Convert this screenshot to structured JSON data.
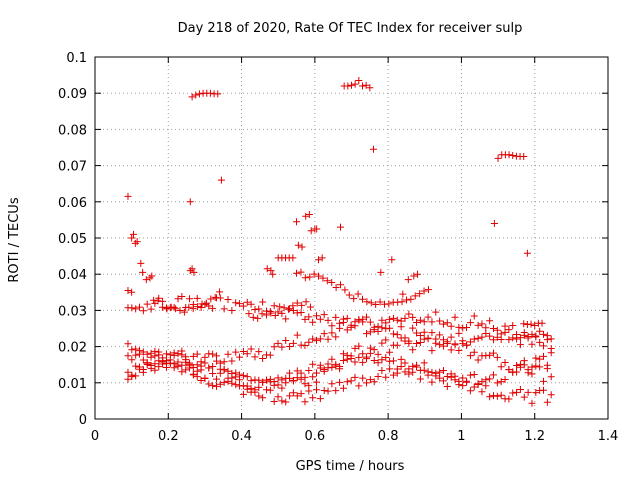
{
  "chart_data": {
    "type": "scatter",
    "title": "Day 218 of 2020, Rate Of TEC Index for receiver sulp",
    "xlabel": "GPS time / hours",
    "ylabel": "ROTI / TECUs",
    "xlim": [
      0,
      1.4
    ],
    "ylim": [
      0,
      0.1
    ],
    "xticks": [
      "0",
      "0.2",
      "0.4",
      "0.6",
      "0.8",
      "1",
      "1.2",
      "1.4"
    ],
    "yticks": [
      "0",
      "0.01",
      "0.02",
      "0.03",
      "0.04",
      "0.05",
      "0.06",
      "0.07",
      "0.08",
      "0.09",
      "0.1"
    ],
    "grid": true,
    "marker": "+",
    "color": "#e00000",
    "points": [
      [
        0.09,
        0.0615
      ],
      [
        0.09,
        0.0355
      ],
      [
        0.1,
        0.035
      ],
      [
        0.1,
        0.05
      ],
      [
        0.105,
        0.051
      ],
      [
        0.11,
        0.0485
      ],
      [
        0.115,
        0.049
      ],
      [
        0.125,
        0.043
      ],
      [
        0.13,
        0.0405
      ],
      [
        0.14,
        0.0385
      ],
      [
        0.15,
        0.039
      ],
      [
        0.155,
        0.0395
      ],
      [
        0.26,
        0.06
      ],
      [
        0.345,
        0.066
      ],
      [
        0.265,
        0.089
      ],
      [
        0.275,
        0.0895
      ],
      [
        0.285,
        0.0898
      ],
      [
        0.295,
        0.09
      ],
      [
        0.305,
        0.09
      ],
      [
        0.315,
        0.09
      ],
      [
        0.325,
        0.0898
      ],
      [
        0.335,
        0.0898
      ],
      [
        0.68,
        0.092
      ],
      [
        0.69,
        0.092
      ],
      [
        0.7,
        0.0922
      ],
      [
        0.71,
        0.0925
      ],
      [
        0.72,
        0.0935
      ],
      [
        0.73,
        0.092
      ],
      [
        0.74,
        0.0922
      ],
      [
        0.75,
        0.0915
      ],
      [
        0.76,
        0.0745
      ],
      [
        1.09,
        0.054
      ],
      [
        1.1,
        0.072
      ],
      [
        1.11,
        0.073
      ],
      [
        1.12,
        0.073
      ],
      [
        1.13,
        0.073
      ],
      [
        1.14,
        0.0728
      ],
      [
        1.15,
        0.0726
      ],
      [
        1.16,
        0.0725
      ],
      [
        1.17,
        0.0725
      ],
      [
        1.18,
        0.0458
      ],
      [
        0.26,
        0.041
      ],
      [
        0.265,
        0.0415
      ],
      [
        0.27,
        0.0405
      ],
      [
        0.47,
        0.0415
      ],
      [
        0.48,
        0.041
      ],
      [
        0.485,
        0.04
      ],
      [
        0.5,
        0.0445
      ],
      [
        0.51,
        0.0445
      ],
      [
        0.52,
        0.0445
      ],
      [
        0.53,
        0.0445
      ],
      [
        0.54,
        0.0445
      ],
      [
        0.55,
        0.0545
      ],
      [
        0.555,
        0.048
      ],
      [
        0.565,
        0.0475
      ],
      [
        0.575,
        0.056
      ],
      [
        0.585,
        0.0565
      ],
      [
        0.59,
        0.052
      ],
      [
        0.6,
        0.0525
      ],
      [
        0.605,
        0.0525
      ],
      [
        0.61,
        0.044
      ],
      [
        0.62,
        0.0445
      ],
      [
        0.67,
        0.053
      ],
      [
        0.78,
        0.0405
      ],
      [
        0.81,
        0.044
      ],
      [
        0.84,
        0.0345
      ],
      [
        0.855,
        0.0385
      ],
      [
        0.87,
        0.0395
      ],
      [
        0.88,
        0.04
      ]
    ]
  }
}
